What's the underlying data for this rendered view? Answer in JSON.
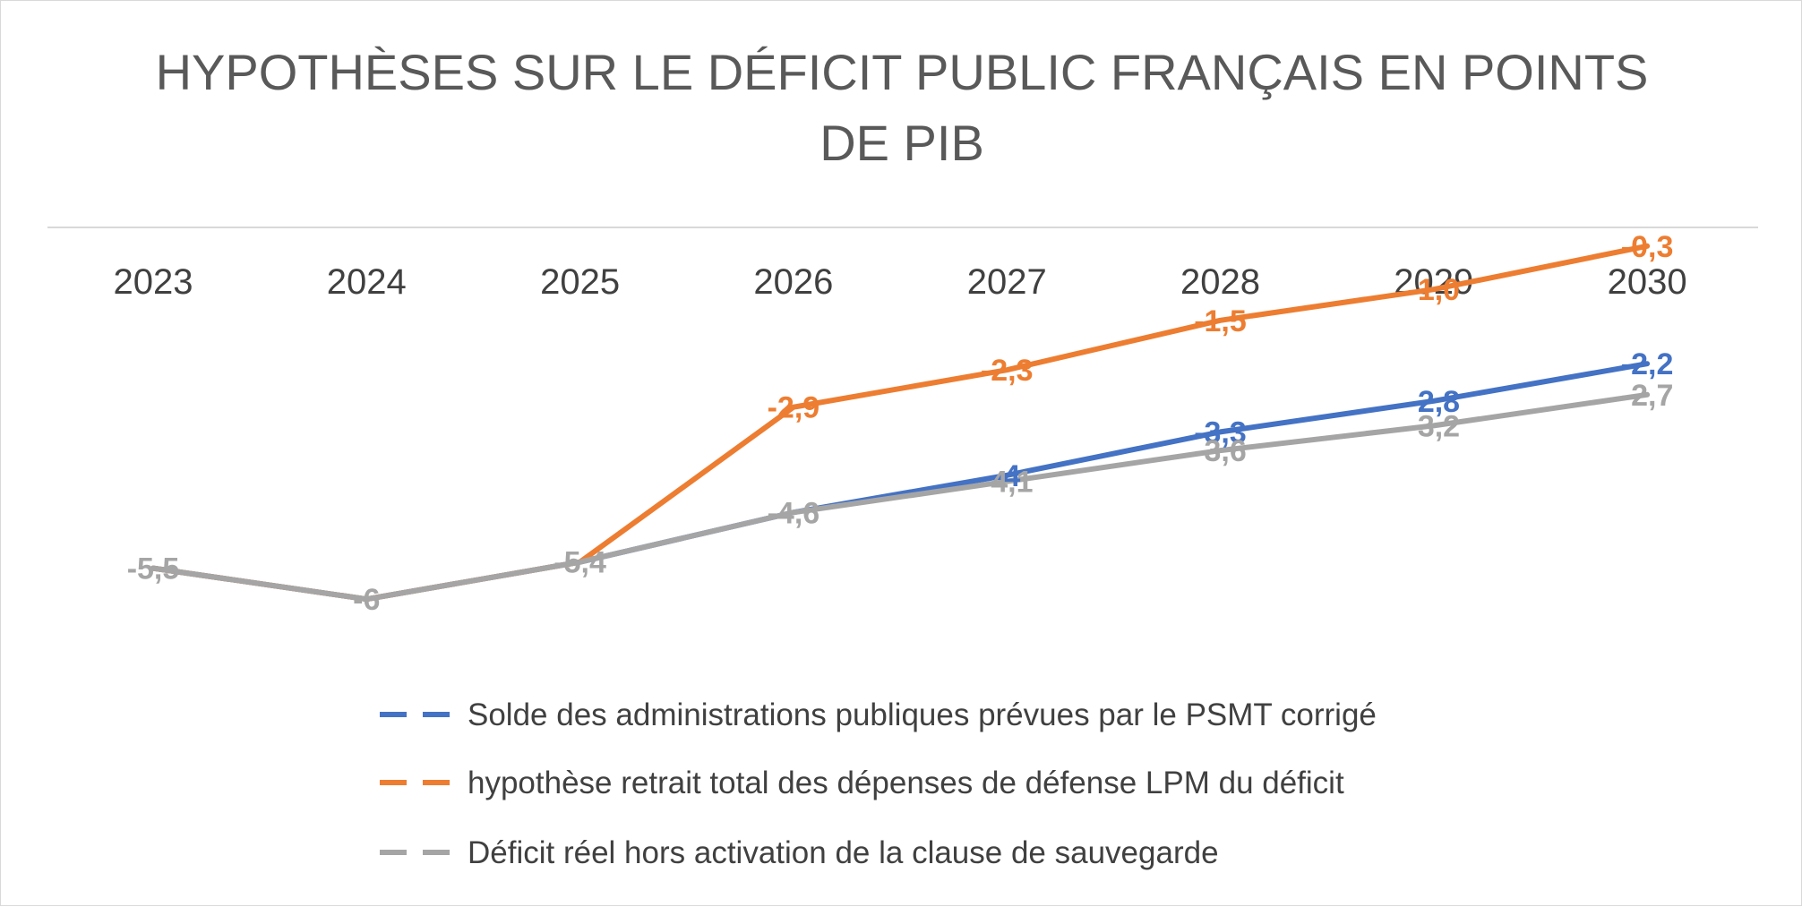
{
  "chart_data": {
    "type": "line",
    "title_lines": [
      "HYPOTHÈSES SUR LE DÉFICIT PUBLIC FRANÇAIS EN POINTS",
      "DE PIB"
    ],
    "categories": [
      "2023",
      "2024",
      "2025",
      "2026",
      "2027",
      "2028",
      "2029",
      "2030"
    ],
    "series": [
      {
        "name": "Solde des administrations publiques prévues par le PSMT corrigé",
        "color": "#4472C4",
        "values": [
          -5.5,
          -6,
          -5.4,
          -4.6,
          -4,
          -3.3,
          -2.8,
          -2.2
        ],
        "labels": [
          null,
          null,
          null,
          null,
          "-4",
          "-3,3",
          "-2,8",
          "-2,2"
        ]
      },
      {
        "name": "hypothèse retrait total des dépenses de défense LPM du déficit",
        "color": "#ED7D31",
        "values": [
          -5.5,
          -6,
          -5.4,
          -2.9,
          -2.3,
          -1.5,
          -1.0,
          -0.3
        ],
        "labels": [
          null,
          null,
          null,
          "-2,9",
          "-2,3",
          "-1,5",
          "-1,0",
          "-0,3"
        ]
      },
      {
        "name": "Déficit réel hors activation de la clause de sauvegarde",
        "color": "#A5A5A5",
        "values": [
          -5.5,
          -6,
          -5.4,
          -4.6,
          -4.1,
          -3.6,
          -3.2,
          -2.7
        ],
        "labels": [
          "-5,5",
          "-6",
          "-5,4",
          "-4,6",
          "-4,1",
          "-3,6",
          "-3,2",
          "-2,7"
        ]
      }
    ],
    "xlabel": "",
    "ylabel": "",
    "ylim": [
      -7.5,
      0
    ],
    "x_axis_position": "top",
    "gridlines": false,
    "legend_position": "bottom"
  }
}
